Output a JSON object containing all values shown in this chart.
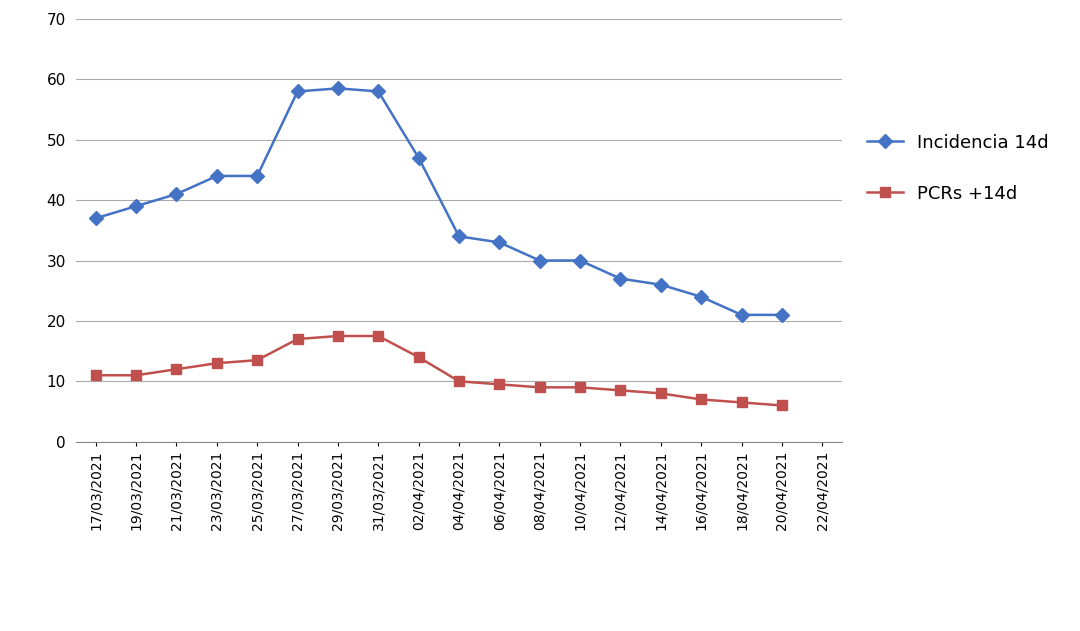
{
  "labels": [
    "17/03/2021",
    "19/03/2021",
    "21/03/2021",
    "23/03/2021",
    "25/03/2021",
    "27/03/2021",
    "29/03/2021",
    "31/03/2021",
    "02/04/2021",
    "04/04/2021",
    "06/04/2021",
    "08/04/2021",
    "10/04/2021",
    "12/04/2021",
    "14/04/2021",
    "16/04/2021",
    "18/04/2021",
    "20/04/2021",
    "22/04/2021"
  ],
  "incidencia_values": [
    37,
    39,
    41,
    44,
    44,
    58,
    58.5,
    58,
    47,
    34,
    33,
    30,
    30,
    27,
    26,
    24,
    21,
    21
  ],
  "pcrs_values": [
    11,
    11,
    12,
    13,
    13.5,
    17,
    17.5,
    17.5,
    14,
    10,
    9.5,
    9,
    9,
    8.5,
    8,
    7,
    6.5,
    6
  ],
  "incidencia_n": 18,
  "pcrs_n": 18,
  "line1_color": "#4472C4",
  "line2_color": "#C0504D",
  "marker1": "D",
  "marker2": "s",
  "legend_labels": [
    "Incidencia 14d",
    "PCRs +14d"
  ],
  "ylim": [
    0,
    70
  ],
  "yticks": [
    0,
    10,
    20,
    30,
    40,
    50,
    60,
    70
  ],
  "grid_color": "#AAAAAA",
  "bg_color": "#FFFFFF",
  "marker_size": 7,
  "line_width": 1.8,
  "tick_fontsize": 10,
  "ytick_fontsize": 11,
  "legend_fontsize": 13
}
